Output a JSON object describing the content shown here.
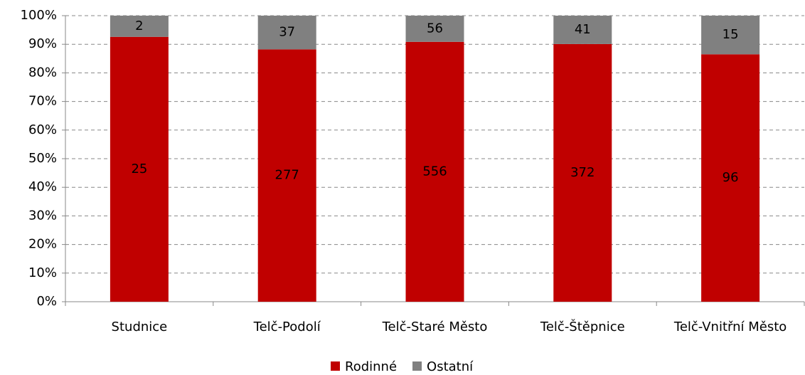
{
  "chart_data": {
    "type": "bar",
    "stacking": "percent",
    "categories": [
      "Studnice",
      "Telč-Podolí",
      "Telč-Staré Město",
      "Telč-Štěpnice",
      "Telč-Vnitřní Město"
    ],
    "series": [
      {
        "name": "Rodinné",
        "color": "#c00000",
        "values": [
          25,
          277,
          556,
          372,
          96
        ]
      },
      {
        "name": "Ostatní",
        "color": "#808080",
        "values": [
          2,
          37,
          56,
          41,
          15
        ]
      }
    ],
    "ylim": [
      0,
      100
    ],
    "yticks": [
      {
        "value": 0,
        "label": "0%"
      },
      {
        "value": 10,
        "label": "10%"
      },
      {
        "value": 20,
        "label": "20%"
      },
      {
        "value": 30,
        "label": "30%"
      },
      {
        "value": 40,
        "label": "40%"
      },
      {
        "value": 50,
        "label": "50%"
      },
      {
        "value": 60,
        "label": "60%"
      },
      {
        "value": 70,
        "label": "70%"
      },
      {
        "value": 80,
        "label": "80%"
      },
      {
        "value": 90,
        "label": "90%"
      },
      {
        "value": 100,
        "label": "100%"
      }
    ],
    "grid": true,
    "legend": "bottom"
  }
}
